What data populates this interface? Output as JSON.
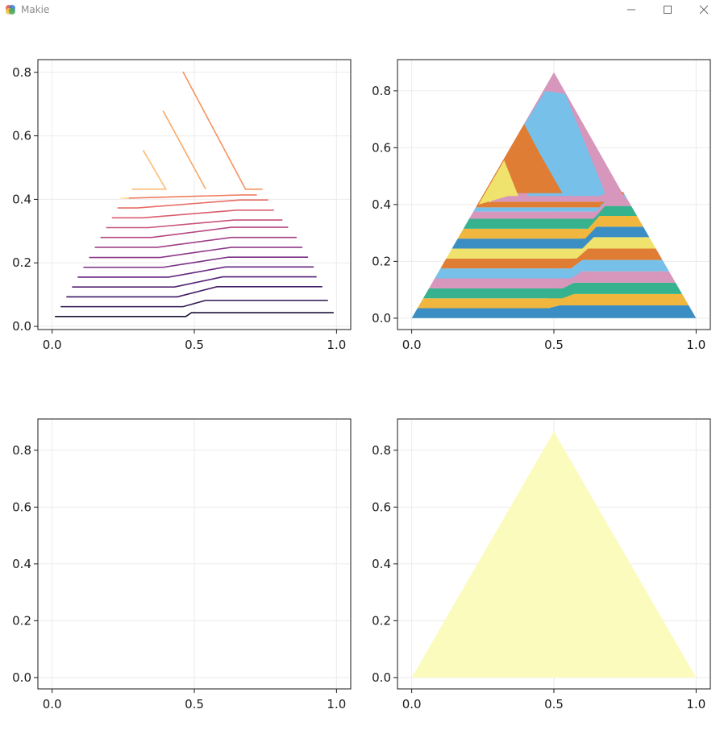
{
  "window": {
    "title": "Makie",
    "controls": [
      "minimize-button",
      "maximize-button",
      "close-button"
    ],
    "logo_colors": [
      "#e0534f",
      "#3b7dd8",
      "#f2c23a",
      "#49a35b"
    ]
  },
  "chart_data": [
    {
      "type": "line",
      "panel": "top-left",
      "title": "",
      "xlabel": "",
      "ylabel": "",
      "xlim": [
        -0.05,
        1.05
      ],
      "ylim": [
        -0.01,
        0.84
      ],
      "xticks": [
        0.0,
        0.5,
        1.0
      ],
      "xtick_labels": [
        "0.0",
        "0.5",
        "1.0"
      ],
      "yticks": [
        0.0,
        0.2,
        0.4,
        0.6,
        0.8
      ],
      "ytick_labels": [
        "0.0",
        "0.2",
        "0.4",
        "0.6",
        "0.8"
      ],
      "grid": true,
      "colormap": "magma (dark to light)",
      "series": [
        {
          "color": "#1d1238",
          "points": [
            [
              0.01,
              0.031
            ],
            [
              0.47,
              0.031
            ],
            [
              0.49,
              0.043
            ],
            [
              0.99,
              0.043
            ]
          ]
        },
        {
          "color": "#2e1650",
          "points": [
            [
              0.03,
              0.062
            ],
            [
              0.46,
              0.062
            ],
            [
              0.54,
              0.082
            ],
            [
              0.97,
              0.082
            ]
          ]
        },
        {
          "color": "#3e1a63",
          "points": [
            [
              0.05,
              0.093
            ],
            [
              0.44,
              0.093
            ],
            [
              0.58,
              0.125
            ],
            [
              0.95,
              0.125
            ]
          ]
        },
        {
          "color": "#511f73",
          "points": [
            [
              0.07,
              0.124
            ],
            [
              0.43,
              0.124
            ],
            [
              0.6,
              0.156
            ],
            [
              0.93,
              0.156
            ]
          ]
        },
        {
          "color": "#64267f",
          "points": [
            [
              0.09,
              0.155
            ],
            [
              0.41,
              0.155
            ],
            [
              0.61,
              0.187
            ],
            [
              0.92,
              0.187
            ]
          ]
        },
        {
          "color": "#782d85",
          "points": [
            [
              0.11,
              0.186
            ],
            [
              0.39,
              0.186
            ],
            [
              0.62,
              0.218
            ],
            [
              0.9,
              0.218
            ]
          ]
        },
        {
          "color": "#8c3688",
          "points": [
            [
              0.13,
              0.217
            ],
            [
              0.38,
              0.217
            ],
            [
              0.63,
              0.249
            ],
            [
              0.88,
              0.249
            ]
          ]
        },
        {
          "color": "#a13e85",
          "points": [
            [
              0.15,
              0.249
            ],
            [
              0.37,
              0.249
            ],
            [
              0.63,
              0.28
            ],
            [
              0.86,
              0.28
            ]
          ]
        },
        {
          "color": "#b54780",
          "points": [
            [
              0.17,
              0.28
            ],
            [
              0.35,
              0.28
            ],
            [
              0.63,
              0.312
            ],
            [
              0.83,
              0.312
            ]
          ]
        },
        {
          "color": "#c85277",
          "points": [
            [
              0.19,
              0.311
            ],
            [
              0.34,
              0.311
            ],
            [
              0.64,
              0.335
            ],
            [
              0.81,
              0.335
            ]
          ]
        },
        {
          "color": "#d95e6d",
          "points": [
            [
              0.21,
              0.342
            ],
            [
              0.32,
              0.342
            ],
            [
              0.65,
              0.366
            ],
            [
              0.78,
              0.366
            ]
          ]
        },
        {
          "color": "#e66c64",
          "points": [
            [
              0.23,
              0.373
            ],
            [
              0.3,
              0.373
            ],
            [
              0.66,
              0.398
            ],
            [
              0.76,
              0.398
            ]
          ]
        },
        {
          "color": "#f07e60",
          "points": [
            [
              0.25,
              0.404
            ],
            [
              0.28,
              0.404
            ],
            [
              0.67,
              0.414
            ],
            [
              0.72,
              0.414
            ]
          ]
        },
        {
          "color": "#f6935f",
          "points": [
            [
              0.46,
              0.802
            ],
            [
              0.68,
              0.432
            ],
            [
              0.74,
              0.432
            ]
          ]
        },
        {
          "color": "#f9a866",
          "points": [
            [
              0.39,
              0.679
            ],
            [
              0.54,
              0.432
            ]
          ]
        },
        {
          "color": "#fbbd76",
          "points": [
            [
              0.32,
              0.555
            ],
            [
              0.4,
              0.432
            ],
            [
              0.28,
              0.432
            ]
          ]
        },
        {
          "color": "#fcd28b",
          "points": [
            [
              0.25,
              0.404
            ],
            [
              0.27,
              0.404
            ]
          ]
        },
        {
          "color": "#fde6a2",
          "points": [
            [
              0.24,
              0.404
            ],
            [
              0.26,
              0.404
            ]
          ]
        }
      ]
    },
    {
      "type": "area",
      "panel": "top-right",
      "title": "",
      "xlim": [
        -0.05,
        1.05
      ],
      "ylim": [
        -0.04,
        0.91
      ],
      "xticks": [
        0.0,
        0.5,
        1.0
      ],
      "xtick_labels": [
        "0.0",
        "0.5",
        "1.0"
      ],
      "yticks": [
        0.0,
        0.2,
        0.4,
        0.6,
        0.8
      ],
      "ytick_labels": [
        "0.0",
        "0.2",
        "0.4",
        "0.6",
        "0.8"
      ],
      "grid": true,
      "triangle": [
        [
          0.0,
          0.0
        ],
        [
          1.0,
          0.0
        ],
        [
          0.5,
          0.866
        ]
      ],
      "palette": [
        "#3b8ec4",
        "#f0b63e",
        "#37b28e",
        "#d796bb",
        "#76c0ea",
        "#e07d35",
        "#efe36d"
      ],
      "bands": [
        {
          "color": "#3b8ec4",
          "left_y0": 0.0,
          "left_y1": 0.035,
          "kink_x": 0.5,
          "right_y0": 0.0,
          "right_y1": 0.045
        },
        {
          "color": "#f0b63e",
          "left_y0": 0.035,
          "left_y1": 0.07,
          "kink_x": 0.5,
          "right_y0": 0.045,
          "right_y1": 0.085
        },
        {
          "color": "#37b28e",
          "left_y0": 0.07,
          "left_y1": 0.105,
          "kink_x": 0.55,
          "right_y0": 0.085,
          "right_y1": 0.125
        },
        {
          "color": "#d796bb",
          "left_y0": 0.105,
          "left_y1": 0.14,
          "kink_x": 0.55,
          "right_y0": 0.125,
          "right_y1": 0.165
        },
        {
          "color": "#76c0ea",
          "left_y0": 0.14,
          "left_y1": 0.175,
          "kink_x": 0.58,
          "right_y0": 0.165,
          "right_y1": 0.205
        },
        {
          "color": "#e07d35",
          "left_y0": 0.175,
          "left_y1": 0.21,
          "kink_x": 0.58,
          "right_y0": 0.205,
          "right_y1": 0.245
        },
        {
          "color": "#efe36d",
          "left_y0": 0.21,
          "left_y1": 0.245,
          "kink_x": 0.6,
          "right_y0": 0.245,
          "right_y1": 0.285
        },
        {
          "color": "#3b8ec4",
          "left_y0": 0.245,
          "left_y1": 0.28,
          "kink_x": 0.62,
          "right_y0": 0.285,
          "right_y1": 0.322
        },
        {
          "color": "#f0b63e",
          "left_y0": 0.28,
          "left_y1": 0.315,
          "kink_x": 0.63,
          "right_y0": 0.322,
          "right_y1": 0.36
        },
        {
          "color": "#37b28e",
          "left_y0": 0.315,
          "left_y1": 0.35,
          "kink_x": 0.64,
          "right_y0": 0.36,
          "right_y1": 0.395
        },
        {
          "color": "#d796bb",
          "left_y0": 0.35,
          "left_y1": 0.375,
          "kink_x": 0.66,
          "right_y0": 0.395,
          "right_y1": 0.42
        },
        {
          "color": "#76c0ea",
          "left_y0": 0.375,
          "left_y1": 0.39,
          "kink_x": 0.67,
          "right_y0": 0.42,
          "right_y1": 0.435
        },
        {
          "color": "#e07d35",
          "left_y0": 0.39,
          "left_y1": 0.41,
          "kink_x": 0.68,
          "right_y0": 0.435,
          "right_y1": 0.445
        }
      ],
      "top_regions": [
        {
          "color": "#d796bb",
          "poly": [
            [
              0.26,
              0.45
            ],
            [
              0.5,
              0.866
            ],
            [
              0.755,
              0.415
            ],
            [
              0.67,
              0.41
            ],
            [
              0.28,
              0.41
            ]
          ]
        },
        {
          "color": "#76c0ea",
          "poly": [
            [
              0.38,
              0.657
            ],
            [
              0.47,
              0.8
            ],
            [
              0.54,
              0.79
            ],
            [
              0.68,
              0.44
            ],
            [
              0.66,
              0.43
            ],
            [
              0.41,
              0.43
            ]
          ]
        },
        {
          "color": "#e07d35",
          "poly": [
            [
              0.23,
              0.4
            ],
            [
              0.395,
              0.684
            ],
            [
              0.45,
              0.58
            ],
            [
              0.53,
              0.44
            ],
            [
              0.355,
              0.44
            ],
            [
              0.34,
              0.44
            ]
          ]
        },
        {
          "color": "#efe36d",
          "poly": [
            [
              0.235,
              0.4
            ],
            [
              0.325,
              0.556
            ],
            [
              0.375,
              0.43
            ],
            [
              0.34,
              0.43
            ],
            [
              0.27,
              0.41
            ]
          ]
        }
      ]
    },
    {
      "type": "line",
      "panel": "bottom-left",
      "title": "",
      "xlim": [
        -0.05,
        1.05
      ],
      "ylim": [
        -0.04,
        0.91
      ],
      "xticks": [
        0.0,
        0.5,
        1.0
      ],
      "xtick_labels": [
        "0.0",
        "0.5",
        "1.0"
      ],
      "yticks": [
        0.0,
        0.2,
        0.4,
        0.6,
        0.8
      ],
      "ytick_labels": [
        "0.0",
        "0.2",
        "0.4",
        "0.6",
        "0.8"
      ],
      "grid": true,
      "series": []
    },
    {
      "type": "area",
      "panel": "bottom-right",
      "title": "",
      "xlim": [
        -0.05,
        1.05
      ],
      "ylim": [
        -0.04,
        0.91
      ],
      "xticks": [
        0.0,
        0.5,
        1.0
      ],
      "xtick_labels": [
        "0.0",
        "0.5",
        "1.0"
      ],
      "yticks": [
        0.0,
        0.2,
        0.4,
        0.6,
        0.8
      ],
      "ytick_labels": [
        "0.0",
        "0.2",
        "0.4",
        "0.6",
        "0.8"
      ],
      "grid": true,
      "fill_color": "#fcfbbe",
      "triangle": [
        [
          0.0,
          0.0
        ],
        [
          1.0,
          0.0
        ],
        [
          0.5,
          0.866
        ]
      ]
    }
  ]
}
